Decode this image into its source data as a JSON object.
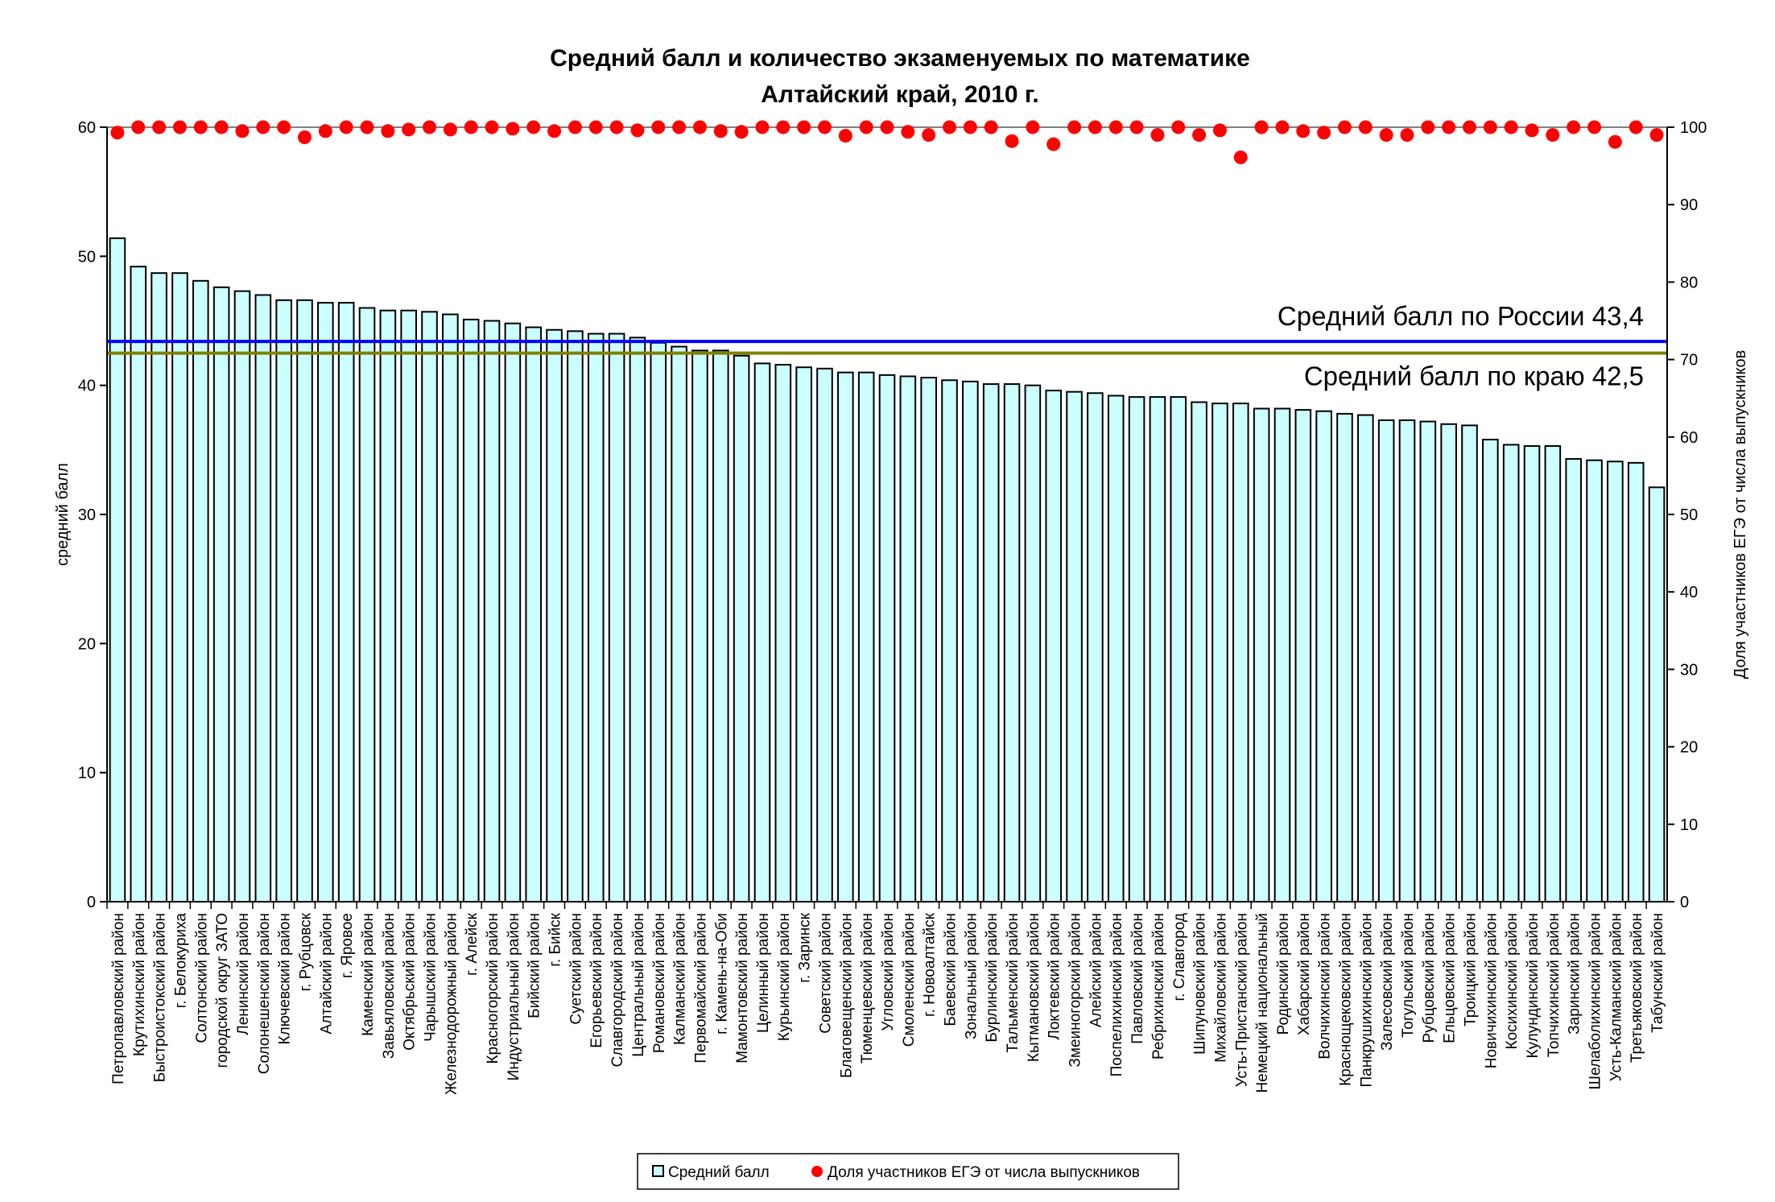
{
  "chart_data": {
    "type": "bar",
    "title": "Средний балл и количество экзаменуемых по математике",
    "subtitle": "Алтайский край, 2010 г.",
    "ylabel": "средний балл",
    "y2label": "Доля участников ЕГЭ от числа выпускников",
    "ylim": [
      0,
      60
    ],
    "y2lim": [
      0,
      100
    ],
    "yticks": [
      "0",
      "10",
      "20",
      "30",
      "40",
      "50",
      "60"
    ],
    "y2ticks": [
      "0",
      "10",
      "20",
      "30",
      "40",
      "50",
      "60",
      "70",
      "80",
      "90",
      "100"
    ],
    "categories": [
      "Петропавловский район",
      "Крутихинский район",
      "Быстроистокский район",
      "г. Белокуриха",
      "Солтонский район",
      "городской округ ЗАТО",
      "Ленинский район",
      "Солонешенский район",
      "Ключевский район",
      "г. Рубцовск",
      "Алтайский район",
      "г. Яровое",
      "Каменский район",
      "Завьяловский район",
      "Октябрьский район",
      "Чарышский район",
      "Железнодорожный район",
      "г. Алейск",
      "Красногорский район",
      "Индустриальный район",
      "Бийский район",
      "г. Бийск",
      "Суетский район",
      "Егорьевский район",
      "Славгородский район",
      "Центральный район",
      "Романовский район",
      "Калманский район",
      "Первомайский район",
      "г. Камень-на-Оби",
      "Мамонтовский район",
      "Целинный район",
      "Курьинский район",
      "г. Заринск",
      "Советский район",
      "Благовещенский район",
      "Тюменцевский район",
      "Угловский район",
      "Смоленский район",
      "г. Новоалтайск",
      "Баевский район",
      "Зональный район",
      "Бурлинский район",
      "Тальменский район",
      "Кытмановский район",
      "Локтевский район",
      "Змеиногорский район",
      "Алейский район",
      "Поспелихинский район",
      "Павловский район",
      "Ребрихинский район",
      "г. Славгород",
      "Шипуновский район",
      "Михайловский район",
      "Усть-Пристанский район",
      "Немецкий национальный",
      "Родинский район",
      "Хабарский район",
      "Волчихинский район",
      "Краснощековский район",
      "Панкрушихинский район",
      "Залесовский район",
      "Тогульский район",
      "Рубцовский район",
      "Ельцовский район",
      "Троицкий район",
      "Новичихинский район",
      "Косихинский район",
      "Кулундинский район",
      "Топчихинский район",
      "Заринский район",
      "Шелаболихинский район",
      "Усть-Калманский район",
      "Третьяковский район",
      "Табунский район"
    ],
    "series": [
      {
        "name": "Средний балл",
        "axis": "left",
        "mark": "bar",
        "color": "#ccffff",
        "values": [
          51.4,
          49.2,
          48.7,
          48.7,
          48.1,
          47.6,
          47.3,
          47.0,
          46.6,
          46.6,
          46.4,
          46.4,
          46.0,
          45.8,
          45.8,
          45.7,
          45.5,
          45.1,
          45.0,
          44.8,
          44.5,
          44.3,
          44.2,
          44.0,
          44.0,
          43.7,
          43.3,
          43.0,
          42.7,
          42.7,
          42.3,
          41.7,
          41.6,
          41.4,
          41.3,
          41.0,
          41.0,
          40.8,
          40.7,
          40.6,
          40.4,
          40.3,
          40.1,
          40.1,
          40.0,
          39.6,
          39.5,
          39.4,
          39.2,
          39.1,
          39.1,
          39.1,
          38.7,
          38.6,
          38.6,
          38.2,
          38.2,
          38.1,
          38.0,
          37.8,
          37.7,
          37.3,
          37.3,
          37.2,
          37.0,
          36.9,
          35.8,
          35.4,
          35.3,
          35.3,
          34.3,
          34.2,
          34.1,
          34.0,
          32.1
        ]
      },
      {
        "name": "Доля участников ЕГЭ от числа выпускников",
        "axis": "right",
        "mark": "dot",
        "color": "#ff0000",
        "values": [
          99.3,
          100,
          100,
          100,
          100,
          100,
          99.5,
          100,
          100,
          98.7,
          99.5,
          100,
          100,
          99.5,
          99.7,
          100,
          99.7,
          100,
          100,
          99.8,
          100,
          99.5,
          100,
          100,
          100,
          99.6,
          100,
          100,
          100,
          99.5,
          99.4,
          100,
          100,
          100,
          100,
          98.9,
          100,
          100,
          99.4,
          99.0,
          100,
          100,
          100,
          98.2,
          100,
          97.8,
          100,
          100,
          100,
          100,
          99.0,
          100,
          99.0,
          99.6,
          96.1,
          100,
          100,
          99.5,
          99.3,
          100,
          100,
          99.0,
          99.0,
          100,
          100,
          100,
          100,
          100,
          99.6,
          99.0,
          100,
          100,
          98.1,
          100,
          99.0
        ]
      }
    ],
    "reference_lines": [
      {
        "label": "Средний балл по России 43,4",
        "value": 43.4,
        "color": "#0000ff"
      },
      {
        "label": "Средний балл по краю 42,5",
        "value": 42.5,
        "color": "#808000"
      }
    ],
    "legend": {
      "position": "bottom",
      "items": [
        "Средний балл",
        "Доля участников ЕГЭ от числа выпускников"
      ]
    },
    "grid": false
  }
}
